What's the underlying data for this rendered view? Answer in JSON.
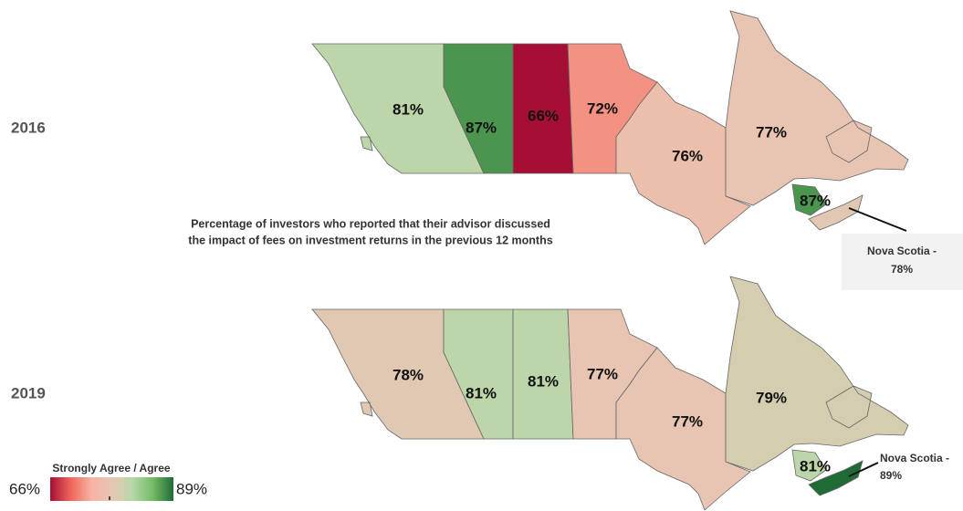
{
  "maps": [
    {
      "year": "2016",
      "values": [
        81,
        87,
        66,
        72,
        76,
        77,
        87
      ],
      "value_labels": [
        "81%",
        "87%",
        "66%",
        "72%",
        "76%",
        "77%",
        "87%"
      ],
      "annotation": {
        "text": "Nova Scotia -",
        "value": 78,
        "value_label": "78%"
      }
    },
    {
      "year": "2019",
      "values": [
        78,
        81,
        81,
        77,
        77,
        79,
        81
      ],
      "value_labels": [
        "78%",
        "81%",
        "81%",
        "77%",
        "77%",
        "79%",
        "81%"
      ],
      "annotation": {
        "text": "Nova Scotia -",
        "value": 89,
        "value_label": "89%"
      }
    }
  ],
  "caption": [
    "Percentage of investors who reported that their advisor discussed",
    "the impact of fees on investment returns in the previous 12 months"
  ],
  "legend": {
    "title": "Strongly Agree / Agree",
    "range": [
      66,
      89
    ],
    "range_labels": [
      "66%",
      "89%"
    ],
    "colors": [
      "#a50f36",
      "#f0655a",
      "#f6b3a3",
      "#e6c6b4",
      "#b8d8a8",
      "#74bc66",
      "#1e6b36"
    ]
  }
}
